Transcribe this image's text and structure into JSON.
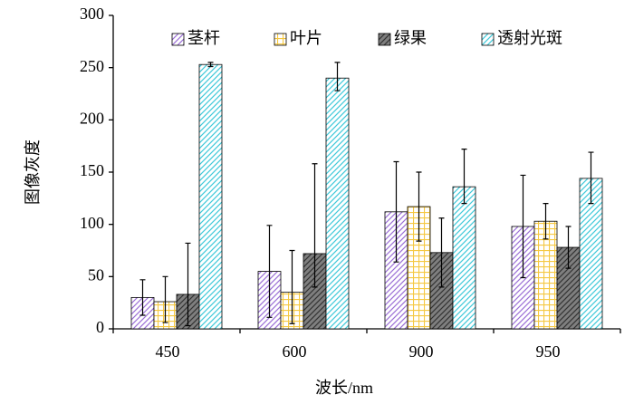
{
  "chart_data": {
    "type": "bar",
    "x_label": "波长/nm",
    "y_label": "图像灰度",
    "categories": [
      "450",
      "600",
      "900",
      "950"
    ],
    "ylim": [
      0,
      300
    ],
    "yticks": [
      0,
      50,
      100,
      150,
      200,
      250,
      300
    ],
    "legend_position": "top",
    "series": [
      {
        "name": "茎杆",
        "color": "#9b6fd6",
        "pattern": "diagonal",
        "values": [
          30,
          55,
          112,
          98
        ],
        "error_plus": [
          17,
          44,
          48,
          49
        ],
        "error_minus": [
          17,
          44,
          48,
          49
        ]
      },
      {
        "name": "叶片",
        "color": "#f5c842",
        "pattern": "grid",
        "values": [
          26,
          35,
          117,
          103
        ],
        "error_plus": [
          24,
          40,
          33,
          17
        ],
        "error_minus": [
          20,
          30,
          33,
          17
        ]
      },
      {
        "name": "绿果",
        "color": "#7f7f7f",
        "pattern": "dark",
        "values": [
          33,
          72,
          73,
          78
        ],
        "error_plus": [
          49,
          86,
          33,
          20
        ],
        "error_minus": [
          30,
          32,
          33,
          20
        ]
      },
      {
        "name": "透射光斑",
        "color": "#3fc9d9",
        "pattern": "diagonal",
        "values": [
          253,
          240,
          136,
          144
        ],
        "error_plus": [
          2,
          15,
          36,
          25
        ],
        "error_minus": [
          2,
          12,
          16,
          24
        ]
      }
    ]
  }
}
